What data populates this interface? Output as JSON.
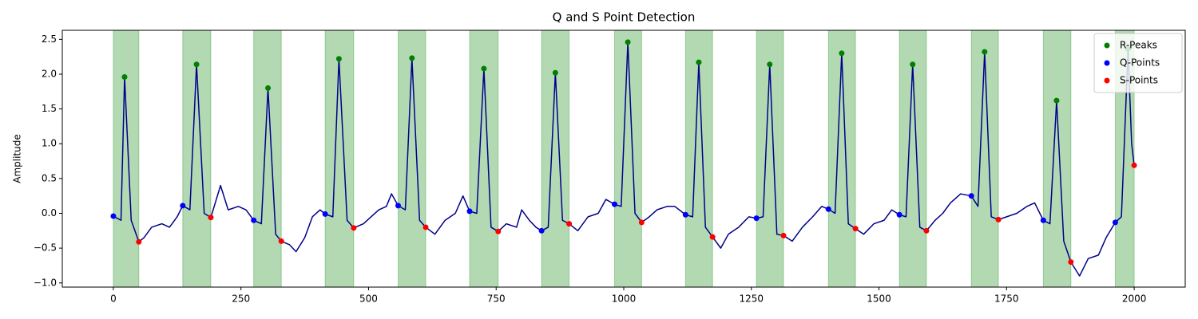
{
  "chart_data": {
    "type": "line",
    "title": "Q and S Point Detection",
    "y_label": "Amplitude",
    "xlim": [
      -100,
      2100
    ],
    "ylim": [
      -1.06,
      2.63
    ],
    "xticks": [
      0,
      250,
      500,
      750,
      1000,
      1250,
      1500,
      1750,
      2000
    ],
    "yticks": [
      {
        "value": -1.0,
        "label": "−1.0"
      },
      {
        "value": -0.5,
        "label": "−0.5"
      },
      {
        "value": 0.0,
        "label": "0.0"
      },
      0.5,
      {
        "value": 1.0,
        "label": "1.0"
      },
      1.5,
      {
        "value": 2.0,
        "label": "2.0"
      },
      2.5
    ],
    "legend": "upper right",
    "span_color": "#008000",
    "series": [
      {
        "type": "line",
        "color": "#00008b",
        "x": [
          0,
          10,
          15,
          22,
          35,
          50,
          60,
          75,
          95,
          110,
          125,
          136,
          150,
          163,
          178,
          191,
          210,
          225,
          245,
          260,
          275,
          290,
          303,
          318,
          329,
          345,
          358,
          375,
          390,
          405,
          415,
          430,
          442,
          458,
          471,
          490,
          505,
          520,
          535,
          545,
          558,
          572,
          585,
          600,
          612,
          630,
          650,
          670,
          685,
          698,
          712,
          726,
          740,
          754,
          770,
          790,
          800,
          815,
          828,
          839,
          852,
          866,
          880,
          893,
          910,
          930,
          950,
          965,
          982,
          995,
          1008,
          1022,
          1035,
          1050,
          1065,
          1085,
          1100,
          1121,
          1135,
          1147,
          1160,
          1174,
          1190,
          1205,
          1225,
          1245,
          1260,
          1273,
          1286,
          1300,
          1313,
          1330,
          1350,
          1370,
          1388,
          1401,
          1414,
          1427,
          1440,
          1454,
          1470,
          1490,
          1510,
          1525,
          1540,
          1553,
          1566,
          1580,
          1593,
          1610,
          1625,
          1640,
          1660,
          1681,
          1694,
          1707,
          1720,
          1734,
          1750,
          1770,
          1790,
          1805,
          1822,
          1835,
          1848,
          1862,
          1876,
          1893,
          1910,
          1930,
          1945,
          1963,
          1975,
          1988,
          1995,
          2000
        ],
        "values": [
          -0.04,
          -0.08,
          -0.1,
          1.96,
          -0.1,
          -0.41,
          -0.35,
          -0.2,
          -0.15,
          -0.2,
          -0.05,
          0.11,
          0.05,
          2.14,
          0.0,
          -0.06,
          0.4,
          0.05,
          0.1,
          0.05,
          -0.1,
          -0.15,
          1.8,
          -0.3,
          -0.4,
          -0.45,
          -0.55,
          -0.35,
          -0.05,
          0.05,
          -0.01,
          -0.05,
          2.22,
          -0.1,
          -0.21,
          -0.15,
          -0.05,
          0.05,
          0.1,
          0.28,
          0.11,
          0.05,
          2.23,
          -0.1,
          -0.2,
          -0.3,
          -0.1,
          0.0,
          0.25,
          0.03,
          0.0,
          2.08,
          -0.2,
          -0.26,
          -0.15,
          -0.2,
          0.05,
          -0.1,
          -0.2,
          -0.25,
          -0.2,
          2.02,
          -0.1,
          -0.15,
          -0.25,
          -0.05,
          0.0,
          0.2,
          0.13,
          0.1,
          2.46,
          0.0,
          -0.13,
          -0.05,
          0.05,
          0.1,
          0.1,
          -0.02,
          -0.05,
          2.17,
          -0.2,
          -0.34,
          -0.5,
          -0.3,
          -0.2,
          -0.05,
          -0.07,
          -0.05,
          2.14,
          -0.3,
          -0.32,
          -0.4,
          -0.2,
          -0.05,
          0.1,
          0.06,
          0.0,
          2.3,
          -0.15,
          -0.22,
          -0.3,
          -0.15,
          -0.1,
          0.05,
          -0.02,
          -0.05,
          2.14,
          -0.2,
          -0.25,
          -0.1,
          0.0,
          0.15,
          0.28,
          0.25,
          0.1,
          2.32,
          -0.05,
          -0.09,
          -0.05,
          0.0,
          0.1,
          0.15,
          -0.1,
          -0.15,
          1.62,
          -0.4,
          -0.7,
          -0.9,
          -0.65,
          -0.6,
          -0.35,
          -0.13,
          -0.05,
          2.36,
          1.0,
          0.69
        ]
      },
      {
        "type": "scatter",
        "name": "R-Peaks",
        "color": "#008000",
        "x": [
          22,
          163,
          303,
          442,
          585,
          726,
          866,
          1008,
          1147,
          1286,
          1427,
          1566,
          1707,
          1848,
          1988
        ],
        "values": [
          1.96,
          2.14,
          1.8,
          2.22,
          2.23,
          2.08,
          2.02,
          2.46,
          2.17,
          2.14,
          2.3,
          2.14,
          2.32,
          1.62,
          2.36
        ]
      },
      {
        "type": "scatter",
        "name": "Q-Points",
        "color": "#0000ff",
        "x": [
          0,
          136,
          275,
          415,
          558,
          698,
          839,
          982,
          1121,
          1260,
          1401,
          1540,
          1681,
          1822,
          1963
        ],
        "values": [
          -0.04,
          0.11,
          -0.1,
          -0.01,
          0.11,
          0.03,
          -0.25,
          0.13,
          -0.02,
          -0.07,
          0.06,
          -0.02,
          0.25,
          -0.1,
          -0.13
        ]
      },
      {
        "type": "scatter",
        "name": "S-Points",
        "color": "#ff0000",
        "x": [
          50,
          191,
          329,
          471,
          612,
          754,
          893,
          1035,
          1174,
          1313,
          1454,
          1593,
          1734,
          1876,
          2000
        ],
        "values": [
          -0.41,
          -0.06,
          -0.4,
          -0.21,
          -0.2,
          -0.26,
          -0.15,
          -0.13,
          -0.34,
          -0.32,
          -0.22,
          -0.25,
          -0.09,
          -0.7,
          0.69
        ]
      }
    ]
  }
}
